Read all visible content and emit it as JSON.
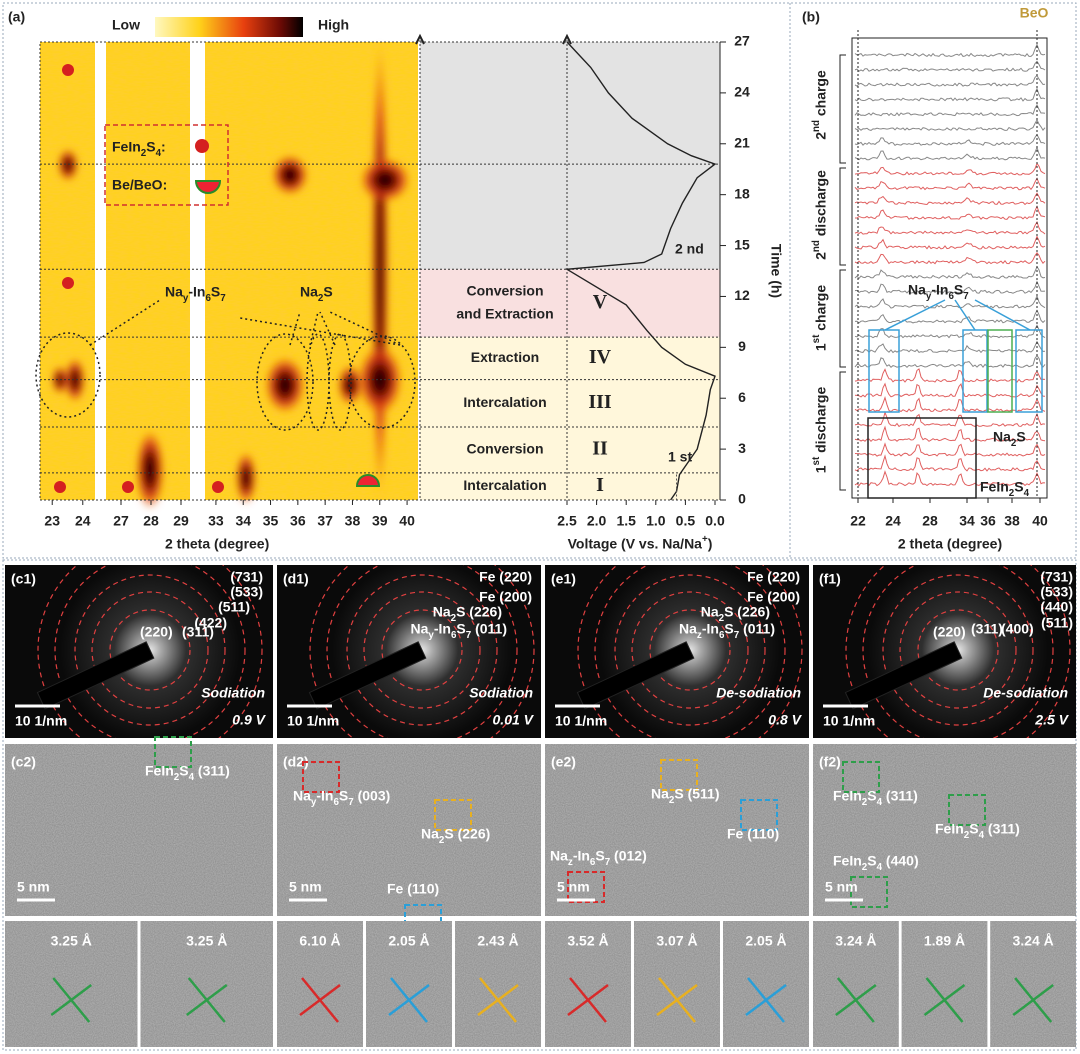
{
  "figure": {
    "panel_a": {
      "label": "(a)",
      "colorbar": {
        "low": "Low",
        "high": "High"
      },
      "x_ticks": [
        23,
        24,
        27,
        28,
        29,
        33,
        34,
        35,
        36,
        37,
        38,
        39,
        40
      ],
      "x_label": "2 theta (degree)",
      "legend": {
        "fein2s4": "FeIn2S4:",
        "bebeo": "Be/BeO:"
      },
      "annotations": {
        "nay": "Nay-In6S7",
        "na2s": "Na2S"
      },
      "stages": [
        {
          "lines": [
            "Conversion",
            "and Extraction"
          ],
          "roman": "V"
        },
        {
          "lines": [
            "Extraction"
          ],
          "roman": "IV"
        },
        {
          "lines": [
            "Intercalation"
          ],
          "roman": "III"
        },
        {
          "lines": [
            "Conversion"
          ],
          "roman": "II"
        },
        {
          "lines": [
            "Intercalation"
          ],
          "roman": "I"
        }
      ],
      "cycle_labels": [
        "2 nd",
        "1 st"
      ],
      "voltage_ticks": [
        {
          "value": 2.5,
          "label": "2.5"
        },
        {
          "value": 2,
          "label": "2.0"
        },
        {
          "value": 1.5,
          "label": "1.5"
        },
        {
          "value": 1,
          "label": "1.0"
        },
        {
          "value": 0.5,
          "label": "0.5"
        },
        {
          "value": 0,
          "label": "0.0"
        }
      ],
      "voltage_label": "Voltage (V vs. Na/Na+)",
      "time_ticks": [
        0,
        3,
        6,
        9,
        12,
        15,
        18,
        21,
        24,
        27
      ],
      "time_label": "Time (h)",
      "voltage_curve": {
        "time": [
          0,
          0.5,
          1.5,
          3,
          5,
          6.5,
          7.3,
          8,
          9,
          10,
          11.5,
          13.6,
          14,
          14.5,
          16,
          17.5,
          19,
          19.8,
          20.3,
          21,
          21.5,
          22.5,
          24,
          25.5,
          27
        ],
        "voltage": [
          0.75,
          0.65,
          0.6,
          0.3,
          0.15,
          0.08,
          0,
          0.5,
          0.9,
          1.15,
          1.5,
          2.5,
          1.2,
          0.9,
          0.75,
          0.55,
          0.3,
          0,
          0.4,
          0.8,
          1.0,
          1.4,
          1.8,
          2.1,
          2.5
        ]
      }
    },
    "panel_b": {
      "label": "(b)",
      "beo": "BeO",
      "segments": [
        "2nd charge",
        "2nd discharge",
        "1st charge",
        "1st discharge"
      ],
      "annotations": {
        "nay": "Nay-In6S7",
        "na2s": "Na2S",
        "fein2s4": "FeIn2S4"
      },
      "x_ticks": [
        22,
        24,
        28,
        34,
        36,
        38,
        40
      ],
      "x_label": "2 theta (degree)"
    },
    "saed": [
      {
        "label": "(c1)",
        "rings": [
          "(731)",
          "(533)",
          "(511)",
          "(422)",
          "(220)",
          "(311)"
        ],
        "mode": "Sodiation",
        "voltage": "0.9 V",
        "scale": "10 1/nm"
      },
      {
        "label": "(d1)",
        "rings": [
          "Fe (220)",
          "Fe (200)",
          "Na2S (226)",
          "Nay-In6S7 (011)"
        ],
        "mode": "Sodiation",
        "voltage": "0.01 V",
        "scale": "10 1/nm"
      },
      {
        "label": "(e1)",
        "rings": [
          "Fe (220)",
          "Fe (200)",
          "Na2S (226)",
          "Naz-In6S7 (011)"
        ],
        "mode": "De-sodiation",
        "voltage": "0.8 V",
        "scale": "10 1/nm"
      },
      {
        "label": "(f1)",
        "rings": [
          "(731)",
          "(533)",
          "(440)",
          "(511)",
          "(220)",
          "(311)",
          "(400)"
        ],
        "mode": "De-sodiation",
        "voltage": "2.5 V",
        "scale": "10 1/nm"
      }
    ],
    "hrtem": [
      {
        "label": "(c2)",
        "regions": [
          "FeIn2S4 (311)"
        ],
        "scale": "5 nm",
        "spacings": [
          "3.25 Å",
          "3.25 Å"
        ]
      },
      {
        "label": "(d2)",
        "regions": [
          "Nay-In6S7 (003)",
          "Na2S (226)",
          "Fe (110)"
        ],
        "scale": "5 nm",
        "spacings": [
          "6.10 Å",
          "2.05 Å",
          "2.43 Å"
        ]
      },
      {
        "label": "(e2)",
        "regions": [
          "Na2S (511)",
          "Fe (110)",
          "Naz-In6S7 (012)"
        ],
        "scale": "5 nm",
        "spacings": [
          "3.52 Å",
          "3.07 Å",
          "2.05 Å"
        ]
      },
      {
        "label": "(f2)",
        "regions": [
          "FeIn2S4 (311)",
          "FeIn2S4 (311)",
          "FeIn2S4 (440)"
        ],
        "scale": "5 nm",
        "spacings": [
          "3.24 Å",
          "1.89 Å",
          "3.24 Å"
        ]
      }
    ]
  }
}
